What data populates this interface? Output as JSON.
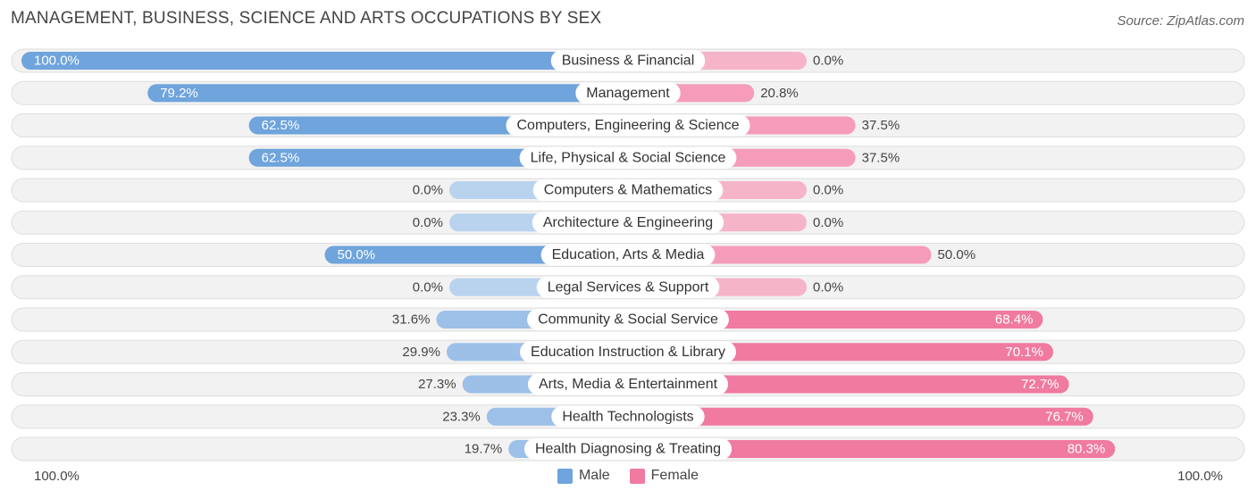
{
  "title": "MANAGEMENT, BUSINESS, SCIENCE AND ARTS OCCUPATIONS BY SEX",
  "source": "Source: ZipAtlas.com",
  "axis": {
    "left_label": "100.0%",
    "right_label": "100.0%"
  },
  "legend": [
    {
      "name": "Male",
      "color": "#6fa4dc"
    },
    {
      "name": "Female",
      "color": "#f07aa0"
    }
  ],
  "chart_data": {
    "type": "bar",
    "orientation": "horizontal-diverging",
    "title": "MANAGEMENT, BUSINESS, SCIENCE AND ARTS OCCUPATIONS BY SEX",
    "xlim": [
      -100,
      100
    ],
    "categories": [
      "Business & Financial",
      "Management",
      "Computers, Engineering & Science",
      "Life, Physical & Social Science",
      "Computers & Mathematics",
      "Architecture & Engineering",
      "Education, Arts & Media",
      "Legal Services & Support",
      "Community & Social Service",
      "Education Instruction & Library",
      "Arts, Media & Entertainment",
      "Health Technologists",
      "Health Diagnosing & Treating"
    ],
    "series": [
      {
        "name": "Male",
        "values": [
          100.0,
          79.2,
          62.5,
          62.5,
          0.0,
          0.0,
          50.0,
          0.0,
          31.6,
          29.9,
          27.3,
          23.3,
          19.7
        ],
        "labels": [
          "100.0%",
          "79.2%",
          "62.5%",
          "62.5%",
          "0.0%",
          "0.0%",
          "50.0%",
          "0.0%",
          "31.6%",
          "29.9%",
          "27.3%",
          "23.3%",
          "19.7%"
        ]
      },
      {
        "name": "Female",
        "values": [
          0.0,
          20.8,
          37.5,
          37.5,
          0.0,
          0.0,
          50.0,
          0.0,
          68.4,
          70.1,
          72.7,
          76.7,
          80.3
        ],
        "labels": [
          "0.0%",
          "20.8%",
          "37.5%",
          "37.5%",
          "0.0%",
          "0.0%",
          "50.0%",
          "0.0%",
          "68.4%",
          "70.1%",
          "72.7%",
          "76.7%",
          "80.3%"
        ]
      }
    ]
  }
}
